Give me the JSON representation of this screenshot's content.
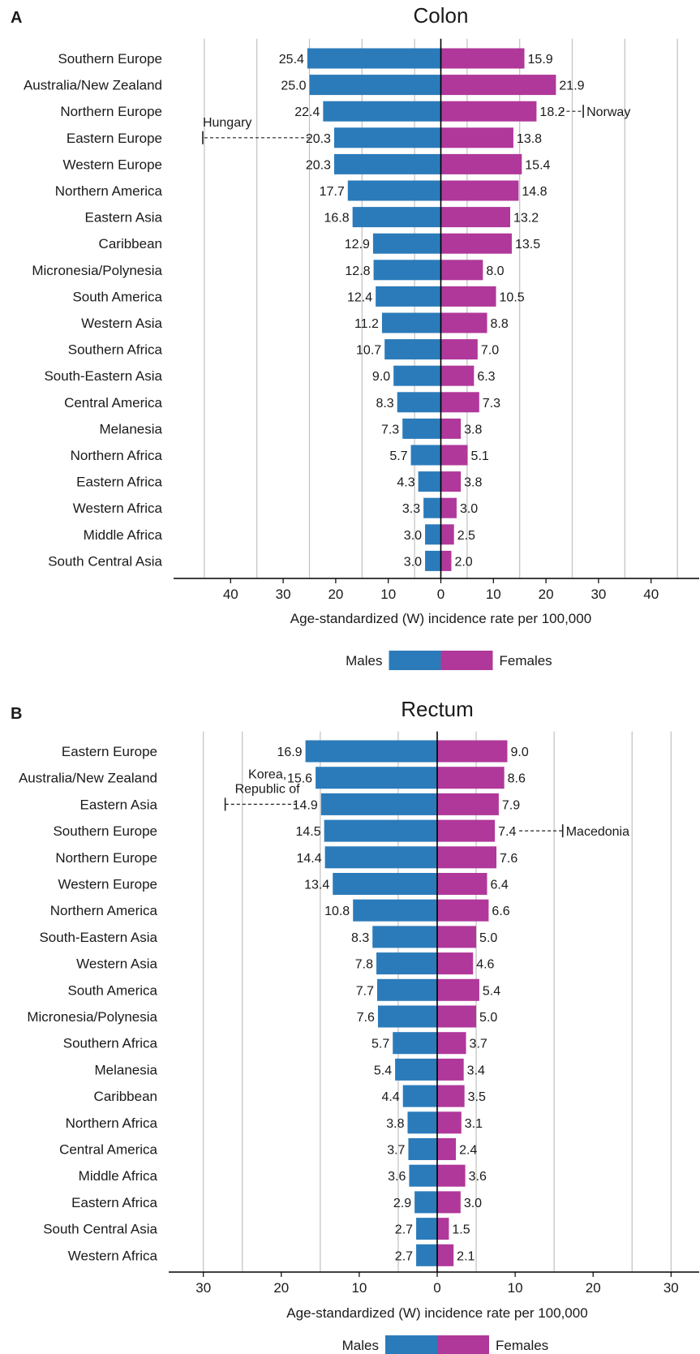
{
  "colors": {
    "males": "#2b7bba",
    "females": "#b0389a",
    "grid": "#c0c0c0",
    "axis": "#000000"
  },
  "legend": {
    "males": "Males",
    "females": "Females"
  },
  "chart_data": [
    {
      "panel_label": "A",
      "title": "Colon",
      "type": "bar",
      "orientation": "horizontal-diverging",
      "xlabel": "Age-standardized (W) incidence rate per 100,000",
      "xlim": [
        -50,
        50
      ],
      "grid_lines": [
        -45,
        -35,
        -25,
        -15,
        -5,
        5,
        15,
        25,
        35,
        45
      ],
      "ticks": [
        -40,
        -30,
        -20,
        -10,
        0,
        10,
        20,
        30,
        40
      ],
      "tick_labels": [
        "40",
        "30",
        "20",
        "10",
        "0",
        "10",
        "20",
        "30",
        "40"
      ],
      "categories": [
        "Southern Europe",
        "Australia/New Zealand",
        "Northern Europe",
        "Eastern Europe",
        "Western Europe",
        "Northern America",
        "Eastern Asia",
        "Caribbean",
        "Micronesia/Polynesia",
        "South America",
        "Western Asia",
        "Southern Africa",
        "South-Eastern Asia",
        "Central America",
        "Melanesia",
        "Northern Africa",
        "Eastern Africa",
        "Western Africa",
        "Middle Africa",
        "South Central Asia"
      ],
      "series": [
        {
          "name": "Males",
          "values": [
            25.4,
            25.0,
            22.4,
            20.3,
            20.3,
            17.7,
            16.8,
            12.9,
            12.8,
            12.4,
            11.2,
            10.7,
            9.0,
            8.3,
            7.3,
            5.7,
            4.3,
            3.3,
            3.0,
            3.0
          ],
          "labels": [
            "25.4",
            "25.0",
            "22.4",
            "20.3",
            "20.3",
            "17.7",
            "16.8",
            "12.9",
            "12.8",
            "12.4",
            "11.2",
            "10.7",
            "9.0",
            "8.3",
            "7.3",
            "5.7",
            "4.3",
            "3.3",
            "3.0",
            "3.0"
          ]
        },
        {
          "name": "Females",
          "values": [
            15.9,
            21.9,
            18.2,
            13.8,
            15.4,
            14.8,
            13.2,
            13.5,
            8.0,
            10.5,
            8.8,
            7.0,
            6.3,
            7.3,
            3.8,
            5.1,
            3.8,
            3.0,
            2.5,
            2.0
          ],
          "labels": [
            "15.9",
            "21.9",
            "18.2",
            "13.8",
            "15.4",
            "14.8",
            "13.2",
            "13.5",
            "8.0",
            "10.5",
            "8.8",
            "7.0",
            "6.3",
            "7.3",
            "3.8",
            "5.1",
            "3.8",
            "3.0",
            "2.5",
            "2.0"
          ]
        }
      ],
      "annotations": [
        {
          "text": "Hungary",
          "side": "Males",
          "category": "Eastern Europe",
          "value": 45.3,
          "label_position": "above"
        },
        {
          "text": "Norway",
          "side": "Females",
          "category": "Northern Europe",
          "value": 27.1,
          "label_position": "right"
        }
      ]
    },
    {
      "panel_label": "B",
      "title": "Rectum",
      "type": "bar",
      "orientation": "horizontal-diverging",
      "xlabel": "Age-standardized (W) incidence rate per 100,000",
      "xlim": [
        -34,
        34
      ],
      "grid_lines": [
        -30,
        -25,
        -15,
        -5,
        5,
        15,
        25,
        30
      ],
      "ticks": [
        -30,
        -20,
        -10,
        0,
        10,
        20,
        30
      ],
      "tick_labels": [
        "30",
        "20",
        "10",
        "0",
        "10",
        "20",
        "30"
      ],
      "categories": [
        "Eastern Europe",
        "Australia/New Zealand",
        "Eastern Asia",
        "Southern Europe",
        "Northern Europe",
        "Western Europe",
        "Northern America",
        "South-Eastern Asia",
        "Western Asia",
        "South America",
        "Micronesia/Polynesia",
        "Southern Africa",
        "Melanesia",
        "Caribbean",
        "Northern Africa",
        "Central America",
        "Middle Africa",
        "Eastern Africa",
        "South Central Asia",
        "Western Africa"
      ],
      "series": [
        {
          "name": "Males",
          "values": [
            16.9,
            15.6,
            14.9,
            14.5,
            14.4,
            13.4,
            10.8,
            8.3,
            7.8,
            7.7,
            7.6,
            5.7,
            5.4,
            4.4,
            3.8,
            3.7,
            3.6,
            2.9,
            2.7,
            2.7
          ],
          "labels": [
            "16.9",
            "15.6",
            "14.9",
            "14.5",
            "14.4",
            "13.4",
            "10.8",
            "8.3",
            "7.8",
            "7.7",
            "7.6",
            "5.7",
            "5.4",
            "4.4",
            "3.8",
            "3.7",
            "3.6",
            "2.9",
            "2.7",
            "2.7"
          ]
        },
        {
          "name": "Females",
          "values": [
            9.0,
            8.6,
            7.9,
            7.4,
            7.6,
            6.4,
            6.6,
            5.0,
            4.6,
            5.4,
            5.0,
            3.7,
            3.4,
            3.5,
            3.1,
            2.4,
            3.6,
            3.0,
            1.5,
            2.1
          ],
          "labels": [
            "9.0",
            "8.6",
            "7.9",
            "7.4",
            "7.6",
            "6.4",
            "6.6",
            "5.0",
            "4.6",
            "5.4",
            "5.0",
            "3.7",
            "3.4",
            "3.5",
            "3.1",
            "2.4",
            "3.6",
            "3.0",
            "1.5",
            "2.1"
          ]
        }
      ],
      "annotations": [
        {
          "text": "Korea,\nRepublic of",
          "side": "Males",
          "category": "Eastern Asia",
          "value": 27.2,
          "label_position": "above"
        },
        {
          "text": "Macedonia",
          "side": "Females",
          "category": "Southern Europe",
          "value": 16.1,
          "label_position": "right"
        }
      ]
    }
  ]
}
